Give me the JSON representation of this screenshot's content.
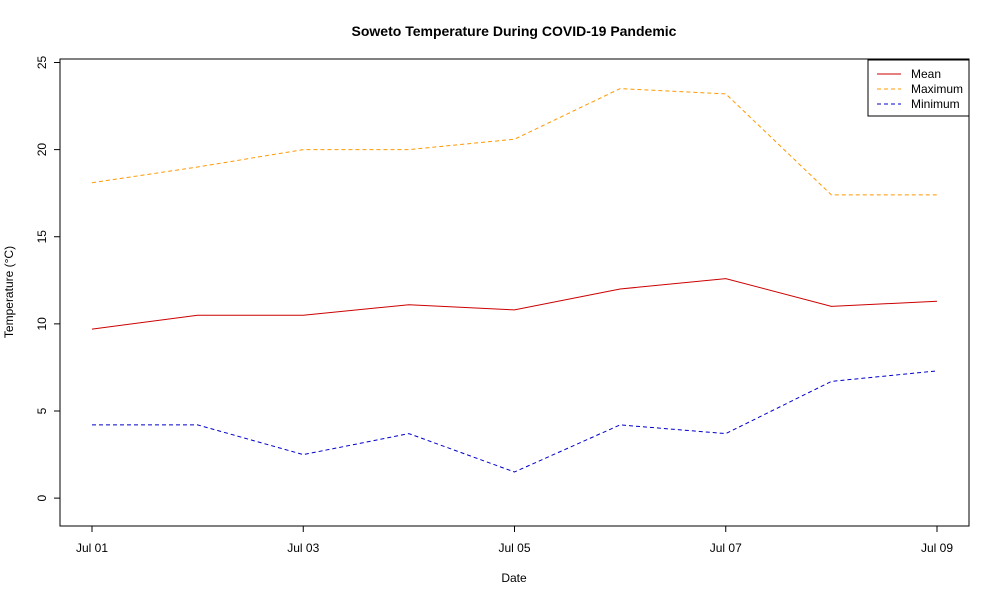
{
  "chart_data": {
    "type": "line",
    "title": "Soweto Temperature During COVID-19 Pandemic",
    "xlabel": "Date",
    "ylabel": "Temperature (°C)",
    "x": [
      "Jul 01",
      "Jul 02",
      "Jul 03",
      "Jul 04",
      "Jul 05",
      "Jul 06",
      "Jul 07",
      "Jul 08",
      "Jul 09"
    ],
    "x_ticks": [
      "Jul 01",
      "Jul 03",
      "Jul 05",
      "Jul 07",
      "Jul 09"
    ],
    "ylim": [
      -1.6,
      25.2
    ],
    "y_ticks": [
      0,
      5,
      10,
      15,
      20,
      25
    ],
    "grid": false,
    "legend_position": "top-right",
    "series": [
      {
        "name": "Mean",
        "color": "#cc0000",
        "dash": "solid",
        "values": [
          9.7,
          10.5,
          10.5,
          11.1,
          10.8,
          12.0,
          12.6,
          11.0,
          11.3
        ]
      },
      {
        "name": "Maximum",
        "color": "#ff9900",
        "dash": "dashed",
        "values": [
          18.1,
          19.0,
          20.0,
          20.0,
          20.6,
          23.5,
          23.2,
          17.4,
          17.4
        ]
      },
      {
        "name": "Minimum",
        "color": "#0000cc",
        "dash": "dashed",
        "values": [
          4.2,
          4.2,
          2.5,
          3.7,
          1.5,
          4.2,
          3.7,
          6.7,
          7.3
        ]
      }
    ]
  }
}
